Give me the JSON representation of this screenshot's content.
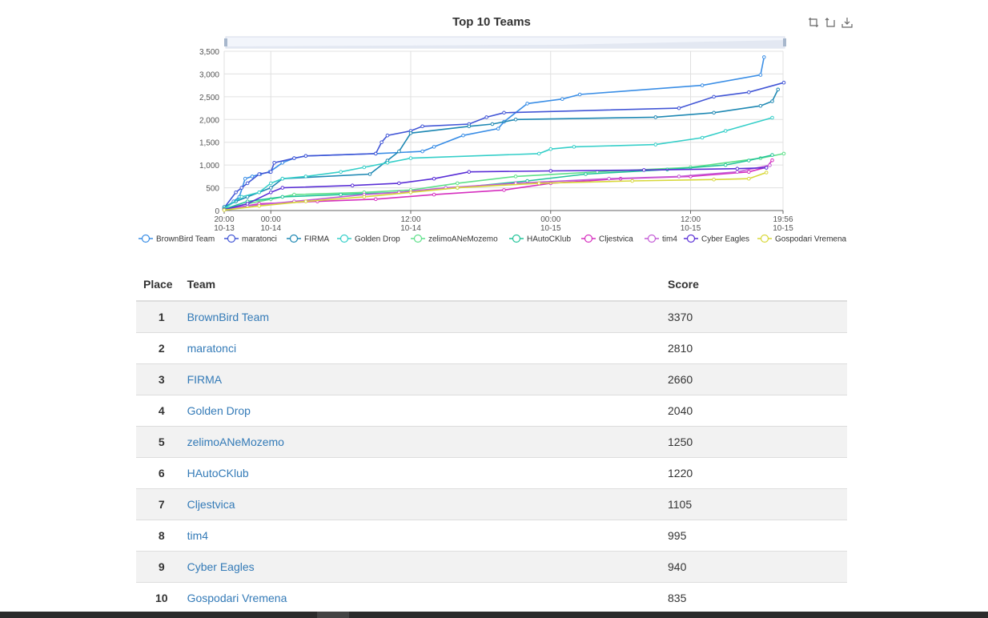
{
  "chart": {
    "title": "Top 10 Teams",
    "toolbox": [
      {
        "name": "zoom-icon",
        "label": "Zoom"
      },
      {
        "name": "zoom-reset-icon",
        "label": "Zoom reset"
      },
      {
        "name": "download-icon",
        "label": "Save as image"
      }
    ]
  },
  "chart_data": {
    "type": "line",
    "title": "Top 10 Teams",
    "ylim": [
      0,
      3500
    ],
    "yticks": [
      0,
      500,
      1000,
      1500,
      2000,
      2500,
      3000,
      3500
    ],
    "ytick_labels": [
      "0",
      "500",
      "1,000",
      "1,500",
      "2,000",
      "2,500",
      "3,000",
      "3,500"
    ],
    "xlim_hours": [
      0,
      47.93
    ],
    "xticks": [
      {
        "t": 0,
        "l1": "20:00",
        "l2": "10-13"
      },
      {
        "t": 4,
        "l1": "00:00",
        "l2": "10-14"
      },
      {
        "t": 16,
        "l1": "12:00",
        "l2": "10-14"
      },
      {
        "t": 28,
        "l1": "00:00",
        "l2": "10-15"
      },
      {
        "t": 40,
        "l1": "12:00",
        "l2": "10-15"
      },
      {
        "t": 47.93,
        "l1": "19:56",
        "l2": "10-15"
      }
    ],
    "grid": true,
    "legend_position": "bottom",
    "series": [
      {
        "name": "BrownBird Team",
        "color": "#3a8ee6",
        "points": [
          [
            0,
            50
          ],
          [
            0.8,
            200
          ],
          [
            1.3,
            300
          ],
          [
            1.8,
            700
          ],
          [
            2.4,
            750
          ],
          [
            3.1,
            800
          ],
          [
            3.9,
            850
          ],
          [
            5,
            1050
          ],
          [
            6,
            1150
          ],
          [
            7,
            1200
          ],
          [
            13,
            1250
          ],
          [
            17,
            1300
          ],
          [
            18,
            1400
          ],
          [
            20.5,
            1650
          ],
          [
            23.5,
            1800
          ],
          [
            24,
            1950
          ],
          [
            26,
            2350
          ],
          [
            29,
            2450
          ],
          [
            30.5,
            2550
          ],
          [
            41,
            2750
          ],
          [
            46,
            2980
          ],
          [
            46.3,
            3370
          ]
        ]
      },
      {
        "name": "maratonci",
        "color": "#4256d6",
        "points": [
          [
            0,
            60
          ],
          [
            1,
            400
          ],
          [
            1.5,
            500
          ],
          [
            2,
            600
          ],
          [
            3,
            800
          ],
          [
            4,
            850
          ],
          [
            4.3,
            1050
          ],
          [
            6,
            1150
          ],
          [
            7,
            1200
          ],
          [
            13,
            1250
          ],
          [
            13.5,
            1500
          ],
          [
            14,
            1650
          ],
          [
            16,
            1750
          ],
          [
            17,
            1850
          ],
          [
            21,
            1900
          ],
          [
            22.5,
            2050
          ],
          [
            24,
            2150
          ],
          [
            39,
            2250
          ],
          [
            42,
            2500
          ],
          [
            45,
            2600
          ],
          [
            48,
            2810
          ]
        ]
      },
      {
        "name": "FIRMA",
        "color": "#1e88b3",
        "points": [
          [
            0,
            80
          ],
          [
            1,
            200
          ],
          [
            2,
            300
          ],
          [
            3,
            400
          ],
          [
            4,
            500
          ],
          [
            5,
            700
          ],
          [
            12.5,
            800
          ],
          [
            14,
            1100
          ],
          [
            15,
            1300
          ],
          [
            16,
            1700
          ],
          [
            21,
            1850
          ],
          [
            23,
            1900
          ],
          [
            25,
            2000
          ],
          [
            37,
            2050
          ],
          [
            42,
            2150
          ],
          [
            46,
            2300
          ],
          [
            47,
            2400
          ],
          [
            47.5,
            2660
          ]
        ]
      },
      {
        "name": "Golden Drop",
        "color": "#36cfc9",
        "points": [
          [
            0,
            40
          ],
          [
            1.5,
            300
          ],
          [
            3,
            400
          ],
          [
            4,
            600
          ],
          [
            5,
            700
          ],
          [
            7,
            750
          ],
          [
            10,
            850
          ],
          [
            12,
            950
          ],
          [
            14,
            1050
          ],
          [
            16,
            1150
          ],
          [
            27,
            1250
          ],
          [
            28,
            1350
          ],
          [
            30,
            1400
          ],
          [
            37,
            1450
          ],
          [
            41,
            1600
          ],
          [
            43,
            1750
          ],
          [
            47,
            2040
          ]
        ]
      },
      {
        "name": "zelimoANeMozemo",
        "color": "#5fe08a",
        "points": [
          [
            0,
            30
          ],
          [
            2,
            150
          ],
          [
            4,
            250
          ],
          [
            6,
            350
          ],
          [
            12,
            400
          ],
          [
            16,
            450
          ],
          [
            20,
            600
          ],
          [
            25,
            750
          ],
          [
            32,
            850
          ],
          [
            40,
            950
          ],
          [
            46,
            1150
          ],
          [
            48,
            1250
          ]
        ]
      },
      {
        "name": "HAutoCKlub",
        "color": "#23c49a",
        "points": [
          [
            0,
            30
          ],
          [
            2,
            200
          ],
          [
            5,
            300
          ],
          [
            10,
            350
          ],
          [
            15,
            400
          ],
          [
            20,
            500
          ],
          [
            26,
            650
          ],
          [
            31,
            800
          ],
          [
            38,
            900
          ],
          [
            43,
            1000
          ],
          [
            45,
            1100
          ],
          [
            47,
            1220
          ]
        ]
      },
      {
        "name": "Cljestvica",
        "color": "#d62fbf",
        "points": [
          [
            0,
            20
          ],
          [
            3,
            150
          ],
          [
            8,
            200
          ],
          [
            13,
            250
          ],
          [
            18,
            350
          ],
          [
            24,
            450
          ],
          [
            28,
            600
          ],
          [
            34,
            700
          ],
          [
            40,
            750
          ],
          [
            45,
            850
          ],
          [
            46.5,
            950
          ],
          [
            47,
            1105
          ]
        ]
      },
      {
        "name": "tim4",
        "color": "#c45bd6",
        "points": [
          [
            0,
            15
          ],
          [
            2,
            100
          ],
          [
            6,
            200
          ],
          [
            12,
            350
          ],
          [
            15,
            400
          ],
          [
            19,
            500
          ],
          [
            25,
            600
          ],
          [
            33,
            700
          ],
          [
            39,
            750
          ],
          [
            44,
            850
          ],
          [
            46.8,
            995
          ]
        ]
      },
      {
        "name": "Cyber Eagles",
        "color": "#5a2fd6",
        "points": [
          [
            0,
            20
          ],
          [
            2,
            150
          ],
          [
            4,
            400
          ],
          [
            5,
            500
          ],
          [
            11,
            550
          ],
          [
            15,
            600
          ],
          [
            18,
            700
          ],
          [
            21,
            850
          ],
          [
            28,
            870
          ],
          [
            36,
            890
          ],
          [
            44,
            920
          ],
          [
            46.5,
            940
          ]
        ]
      },
      {
        "name": "Gospodari Vremena",
        "color": "#d8d83a",
        "points": [
          [
            0,
            10
          ],
          [
            3,
            100
          ],
          [
            7,
            200
          ],
          [
            12,
            300
          ],
          [
            16,
            400
          ],
          [
            20,
            500
          ],
          [
            27,
            600
          ],
          [
            35,
            650
          ],
          [
            42,
            680
          ],
          [
            45,
            700
          ],
          [
            46.5,
            835
          ]
        ]
      }
    ]
  },
  "table": {
    "headers": {
      "place": "Place",
      "team": "Team",
      "score": "Score"
    },
    "rows": [
      {
        "place": "1",
        "team": "BrownBird Team",
        "score": "3370"
      },
      {
        "place": "2",
        "team": "maratonci",
        "score": "2810"
      },
      {
        "place": "3",
        "team": "FIRMA",
        "score": "2660"
      },
      {
        "place": "4",
        "team": "Golden Drop",
        "score": "2040"
      },
      {
        "place": "5",
        "team": "zelimoANeMozemo",
        "score": "1250"
      },
      {
        "place": "6",
        "team": "HAutoCKlub",
        "score": "1220"
      },
      {
        "place": "7",
        "team": "Cljestvica",
        "score": "1105"
      },
      {
        "place": "8",
        "team": "tim4",
        "score": "995"
      },
      {
        "place": "9",
        "team": "Cyber Eagles",
        "score": "940"
      },
      {
        "place": "10",
        "team": "Gospodari Vremena",
        "score": "835"
      }
    ]
  }
}
